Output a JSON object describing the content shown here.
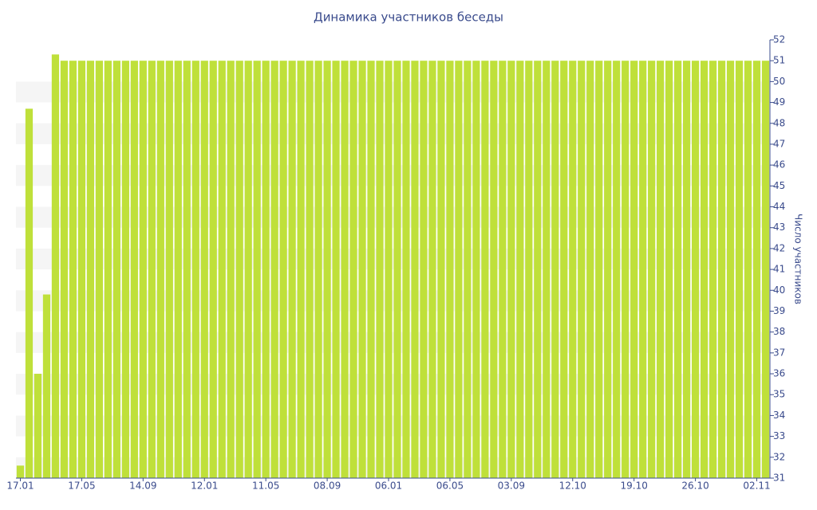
{
  "chart_data": {
    "type": "bar",
    "title": "Динамика участников беседы",
    "y_label": "Число участников",
    "color": "#bfe03a",
    "categories": [
      "17.01",
      null,
      null,
      null,
      null,
      null,
      null,
      "17.05",
      null,
      null,
      null,
      null,
      null,
      null,
      "14.09",
      null,
      null,
      null,
      null,
      null,
      null,
      "12.01",
      null,
      null,
      null,
      null,
      null,
      null,
      "11.05",
      null,
      null,
      null,
      null,
      null,
      null,
      "08.09",
      null,
      null,
      null,
      null,
      null,
      null,
      "06.01",
      null,
      null,
      null,
      null,
      null,
      null,
      "06.05",
      null,
      null,
      null,
      null,
      null,
      null,
      "03.09",
      null,
      null,
      null,
      null,
      null,
      null,
      "12.10",
      null,
      null,
      null,
      null,
      null,
      null,
      "19.10",
      null,
      null,
      null,
      null,
      null,
      null,
      "26.10",
      null,
      null,
      null,
      null,
      null,
      null,
      "02.11",
      null
    ],
    "values": [
      31.6,
      48.7,
      36,
      39.8,
      51.3,
      51,
      51,
      51,
      51,
      51,
      51,
      51,
      51,
      51,
      51,
      51,
      51,
      51,
      51,
      51,
      51,
      51,
      51,
      51,
      51,
      51,
      51,
      51,
      51,
      51,
      51,
      51,
      51,
      51,
      51,
      51,
      51,
      51,
      51,
      51,
      51,
      51,
      51,
      51,
      51,
      51,
      51,
      51,
      51,
      51,
      51,
      51,
      51,
      51,
      51,
      51,
      51,
      51,
      51,
      51,
      51,
      51,
      51,
      51,
      51,
      51,
      51,
      51,
      51,
      51,
      51,
      51,
      51,
      51,
      51,
      51,
      51,
      51,
      51,
      51,
      51,
      51,
      51,
      51,
      51,
      51
    ],
    "ylim": [
      31,
      52
    ],
    "yticks": [
      31,
      32,
      33,
      34,
      35,
      36,
      37,
      38,
      39,
      40,
      41,
      42,
      43,
      44,
      45,
      46,
      47,
      48,
      49,
      50,
      51,
      52
    ],
    "y_axis_side": "right",
    "banded_grid": true
  }
}
